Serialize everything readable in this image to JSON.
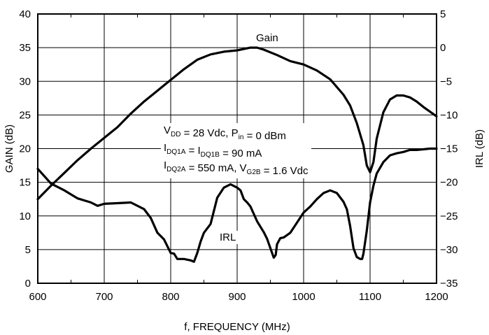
{
  "chart_data": {
    "type": "line",
    "title": "",
    "xlabel": "f, FREQUENCY (MHz)",
    "ylabel_left": "GAIN (dB)",
    "ylabel_right": "IRL (dB)",
    "xlim": [
      600,
      1200
    ],
    "ylim_left": [
      0,
      40
    ],
    "ylim_right": [
      -35,
      5
    ],
    "grid": true,
    "x_ticks": [
      "600",
      "700",
      "800",
      "900",
      "1000",
      "1100",
      "1200"
    ],
    "y_left_ticks": [
      "0",
      "5",
      "10",
      "15",
      "20",
      "25",
      "30",
      "35",
      "40"
    ],
    "y_right_ticks": [
      "5",
      "0",
      "−5",
      "−10",
      "−15",
      "−20",
      "−25",
      "−30",
      "−35"
    ],
    "annotation_lines": [
      [
        {
          "t": "V"
        },
        {
          "t": "DD",
          "sub": true
        },
        {
          "t": " = 28 Vdc, P"
        },
        {
          "t": "in",
          "sub": true
        },
        {
          "t": " = 0 dBm"
        }
      ],
      [
        {
          "t": "I"
        },
        {
          "t": "DQ1A",
          "sub": true
        },
        {
          "t": " = I"
        },
        {
          "t": "DQ1B",
          "sub": true
        },
        {
          "t": " = 90 mA"
        }
      ],
      [
        {
          "t": "I"
        },
        {
          "t": "DQ2A",
          "sub": true
        },
        {
          "t": " = 550 mA, V"
        },
        {
          "t": "G2B",
          "sub": true
        },
        {
          "t": " = 1.6 Vdc"
        }
      ]
    ],
    "series": [
      {
        "name": "Gain",
        "axis": "left",
        "x": [
          600,
          620,
          640,
          660,
          680,
          700,
          720,
          740,
          760,
          780,
          800,
          820,
          840,
          860,
          880,
          900,
          920,
          930,
          940,
          960,
          980,
          1000,
          1020,
          1040,
          1060,
          1070,
          1080,
          1090,
          1095,
          1100,
          1105,
          1110,
          1120,
          1130,
          1140,
          1150,
          1160,
          1170,
          1180,
          1190,
          1200
        ],
        "y": [
          12.5,
          14.5,
          16.4,
          18.3,
          20.0,
          21.6,
          23.2,
          25.2,
          27.0,
          28.6,
          30.2,
          31.8,
          33.2,
          34.0,
          34.4,
          34.6,
          35.0,
          35.0,
          34.7,
          33.9,
          33.0,
          32.5,
          31.6,
          30.3,
          28.0,
          26.4,
          23.8,
          20.5,
          17.5,
          16.5,
          18.0,
          21.5,
          25.4,
          27.3,
          27.9,
          27.9,
          27.6,
          27.0,
          26.2,
          25.5,
          24.8
        ]
      },
      {
        "name": "IRL",
        "axis": "right",
        "x": [
          600,
          620,
          640,
          660,
          680,
          690,
          700,
          720,
          740,
          760,
          770,
          780,
          790,
          800,
          805,
          810,
          815,
          820,
          830,
          835,
          840,
          845,
          850,
          860,
          870,
          880,
          890,
          900,
          905,
          910,
          915,
          920,
          930,
          940,
          945,
          950,
          955,
          958,
          960,
          965,
          970,
          980,
          990,
          1000,
          1010,
          1020,
          1030,
          1040,
          1050,
          1060,
          1065,
          1070,
          1075,
          1080,
          1085,
          1088,
          1090,
          1095,
          1100,
          1105,
          1110,
          1120,
          1130,
          1140,
          1150,
          1160,
          1170,
          1180,
          1190,
          1200
        ],
        "y": [
          -18.0,
          -20.2,
          -21.2,
          -22.4,
          -23.0,
          -23.5,
          -23.2,
          -23.1,
          -23.0,
          -24.0,
          -25.3,
          -27.5,
          -28.5,
          -30.5,
          -30.6,
          -31.4,
          -31.4,
          -31.4,
          -31.6,
          -31.8,
          -30.5,
          -28.8,
          -27.5,
          -26.2,
          -22.3,
          -20.8,
          -20.3,
          -20.8,
          -21.2,
          -22.5,
          -23.0,
          -23.6,
          -25.8,
          -27.4,
          -28.4,
          -29.8,
          -31.2,
          -30.8,
          -29.2,
          -28.3,
          -28.2,
          -27.5,
          -26.0,
          -24.5,
          -23.6,
          -22.5,
          -21.6,
          -21.2,
          -21.6,
          -22.9,
          -24.0,
          -26.5,
          -29.8,
          -31.1,
          -31.4,
          -31.4,
          -30.6,
          -27.2,
          -23.0,
          -20.5,
          -18.7,
          -17.0,
          -16.0,
          -15.7,
          -15.5,
          -15.2,
          -15.2,
          -15.1,
          -15.0,
          -15.0
        ]
      }
    ]
  }
}
